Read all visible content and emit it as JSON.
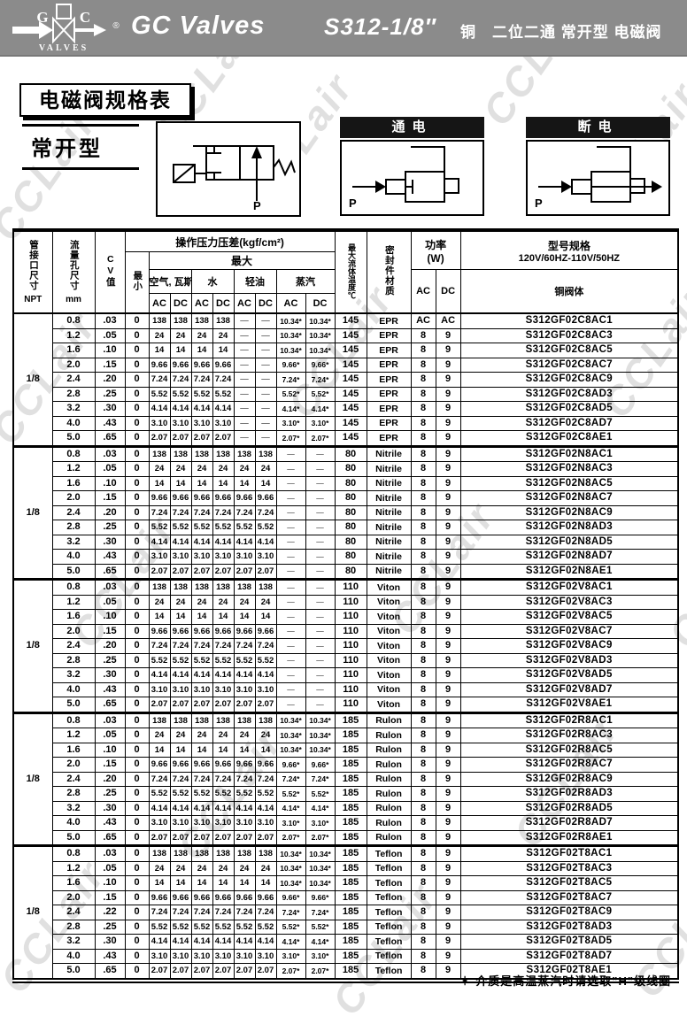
{
  "header": {
    "brand": "GC Valves",
    "model": "S312-1/8″",
    "subtitle": "铜　二位二通 常开型 电磁阀",
    "logo": {
      "g": "G",
      "c": "C",
      "valves": "VALVES",
      "reg": "®"
    }
  },
  "section": {
    "title": "电磁阀规格表",
    "type_label": "常开型",
    "energized_label": "通电",
    "deenergized_label": "断电",
    "port_label": "P"
  },
  "table": {
    "headers": {
      "pipe_size": "管接口尺寸",
      "pipe_size_unit": "NPT",
      "orifice": "流量孔尺寸",
      "orifice_unit": "mm",
      "cv": "CV值",
      "pressure_group": "操作压力压差(kgf/cm²)",
      "min": "最小",
      "max": "最大",
      "media": [
        "空气, 瓦斯",
        "水",
        "轻油",
        "蒸汽"
      ],
      "ac": "AC",
      "dc": "DC",
      "max_temp": "最大流体温度℃",
      "seal": "密封件材质",
      "power": "功率",
      "power_unit": "(W)",
      "model_spec": "型号规格",
      "voltage": "120V/60HZ-110V/50HZ",
      "body": "铜阀体"
    },
    "groups": [
      {
        "npt": "1/8",
        "rows": [
          [
            "0.8",
            ".03",
            "0",
            "138",
            "138",
            "138",
            "138",
            "—",
            "—",
            "10.34*",
            "10.34*",
            "145",
            "EPR",
            "AC",
            "AC",
            "S312GF02C8AC1"
          ],
          [
            "1.2",
            ".05",
            "0",
            "24",
            "24",
            "24",
            "24",
            "—",
            "—",
            "10.34*",
            "10.34*",
            "145",
            "EPR",
            "8",
            "9",
            "S312GF02C8AC3"
          ],
          [
            "1.6",
            ".10",
            "0",
            "14",
            "14",
            "14",
            "14",
            "—",
            "—",
            "10.34*",
            "10.34*",
            "145",
            "EPR",
            "8",
            "9",
            "S312GF02C8AC5"
          ],
          [
            "2.0",
            ".15",
            "0",
            "9.66",
            "9.66",
            "9.66",
            "9.66",
            "—",
            "—",
            "9.66*",
            "9.66*",
            "145",
            "EPR",
            "8",
            "9",
            "S312GF02C8AC7"
          ],
          [
            "2.4",
            ".20",
            "0",
            "7.24",
            "7.24",
            "7.24",
            "7.24",
            "—",
            "—",
            "7.24*",
            "7.24*",
            "145",
            "EPR",
            "8",
            "9",
            "S312GF02C8AC9"
          ],
          [
            "2.8",
            ".25",
            "0",
            "5.52",
            "5.52",
            "5.52",
            "5.52",
            "—",
            "—",
            "5.52*",
            "5.52*",
            "145",
            "EPR",
            "8",
            "9",
            "S312GF02C8AD3"
          ],
          [
            "3.2",
            ".30",
            "0",
            "4.14",
            "4.14",
            "4.14",
            "4.14",
            "—",
            "—",
            "4.14*",
            "4.14*",
            "145",
            "EPR",
            "8",
            "9",
            "S312GF02C8AD5"
          ],
          [
            "4.0",
            ".43",
            "0",
            "3.10",
            "3.10",
            "3.10",
            "3.10",
            "—",
            "—",
            "3.10*",
            "3.10*",
            "145",
            "EPR",
            "8",
            "9",
            "S312GF02C8AD7"
          ],
          [
            "5.0",
            ".65",
            "0",
            "2.07",
            "2.07",
            "2.07",
            "2.07",
            "—",
            "—",
            "2.07*",
            "2.07*",
            "145",
            "EPR",
            "8",
            "9",
            "S312GF02C8AE1"
          ]
        ]
      },
      {
        "npt": "1/8",
        "rows": [
          [
            "0.8",
            ".03",
            "0",
            "138",
            "138",
            "138",
            "138",
            "138",
            "138",
            "—",
            "—",
            "80",
            "Nitrile",
            "8",
            "9",
            "S312GF02N8AC1"
          ],
          [
            "1.2",
            ".05",
            "0",
            "24",
            "24",
            "24",
            "24",
            "24",
            "24",
            "—",
            "—",
            "80",
            "Nitrile",
            "8",
            "9",
            "S312GF02N8AC3"
          ],
          [
            "1.6",
            ".10",
            "0",
            "14",
            "14",
            "14",
            "14",
            "14",
            "14",
            "—",
            "—",
            "80",
            "Nitrile",
            "8",
            "9",
            "S312GF02N8AC5"
          ],
          [
            "2.0",
            ".15",
            "0",
            "9.66",
            "9.66",
            "9.66",
            "9.66",
            "9.66",
            "9.66",
            "—",
            "—",
            "80",
            "Nitrile",
            "8",
            "9",
            "S312GF02N8AC7"
          ],
          [
            "2.4",
            ".20",
            "0",
            "7.24",
            "7.24",
            "7.24",
            "7.24",
            "7.24",
            "7.24",
            "—",
            "—",
            "80",
            "Nitrile",
            "8",
            "9",
            "S312GF02N8AC9"
          ],
          [
            "2.8",
            ".25",
            "0",
            "5.52",
            "5.52",
            "5.52",
            "5.52",
            "5.52",
            "5.52",
            "—",
            "—",
            "80",
            "Nitrile",
            "8",
            "9",
            "S312GF02N8AD3"
          ],
          [
            "3.2",
            ".30",
            "0",
            "4.14",
            "4.14",
            "4.14",
            "4.14",
            "4.14",
            "4.14",
            "—",
            "—",
            "80",
            "Nitrile",
            "8",
            "9",
            "S312GF02N8AD5"
          ],
          [
            "4.0",
            ".43",
            "0",
            "3.10",
            "3.10",
            "3.10",
            "3.10",
            "3.10",
            "3.10",
            "—",
            "—",
            "80",
            "Nitrile",
            "8",
            "9",
            "S312GF02N8AD7"
          ],
          [
            "5.0",
            ".65",
            "0",
            "2.07",
            "2.07",
            "2.07",
            "2.07",
            "2.07",
            "2.07",
            "—",
            "—",
            "80",
            "Nitrile",
            "8",
            "9",
            "S312GF02N8AE1"
          ]
        ]
      },
      {
        "npt": "1/8",
        "rows": [
          [
            "0.8",
            ".03",
            "0",
            "138",
            "138",
            "138",
            "138",
            "138",
            "138",
            "—",
            "—",
            "110",
            "Viton",
            "8",
            "9",
            "S312GF02V8AC1"
          ],
          [
            "1.2",
            ".05",
            "0",
            "24",
            "24",
            "24",
            "24",
            "24",
            "24",
            "—",
            "—",
            "110",
            "Viton",
            "8",
            "9",
            "S312GF02V8AC3"
          ],
          [
            "1.6",
            ".10",
            "0",
            "14",
            "14",
            "14",
            "14",
            "14",
            "14",
            "—",
            "—",
            "110",
            "Viton",
            "8",
            "9",
            "S312GF02V8AC5"
          ],
          [
            "2.0",
            ".15",
            "0",
            "9.66",
            "9.66",
            "9.66",
            "9.66",
            "9.66",
            "9.66",
            "—",
            "—",
            "110",
            "Viton",
            "8",
            "9",
            "S312GF02V8AC7"
          ],
          [
            "2.4",
            ".20",
            "0",
            "7.24",
            "7.24",
            "7.24",
            "7.24",
            "7.24",
            "7.24",
            "—",
            "—",
            "110",
            "Viton",
            "8",
            "9",
            "S312GF02V8AC9"
          ],
          [
            "2.8",
            ".25",
            "0",
            "5.52",
            "5.52",
            "5.52",
            "5.52",
            "5.52",
            "5.52",
            "—",
            "—",
            "110",
            "Viton",
            "8",
            "9",
            "S312GF02V8AD3"
          ],
          [
            "3.2",
            ".30",
            "0",
            "4.14",
            "4.14",
            "4.14",
            "4.14",
            "4.14",
            "4.14",
            "—",
            "—",
            "110",
            "Viton",
            "8",
            "9",
            "S312GF02V8AD5"
          ],
          [
            "4.0",
            ".43",
            "0",
            "3.10",
            "3.10",
            "3.10",
            "3.10",
            "3.10",
            "3.10",
            "—",
            "—",
            "110",
            "Viton",
            "8",
            "9",
            "S312GF02V8AD7"
          ],
          [
            "5.0",
            ".65",
            "0",
            "2.07",
            "2.07",
            "2.07",
            "2.07",
            "2.07",
            "2.07",
            "—",
            "—",
            "110",
            "Viton",
            "8",
            "9",
            "S312GF02V8AE1"
          ]
        ]
      },
      {
        "npt": "1/8",
        "rows": [
          [
            "0.8",
            ".03",
            "0",
            "138",
            "138",
            "138",
            "138",
            "138",
            "138",
            "10.34*",
            "10.34*",
            "185",
            "Rulon",
            "8",
            "9",
            "S312GF02R8AC1"
          ],
          [
            "1.2",
            ".05",
            "0",
            "24",
            "24",
            "24",
            "24",
            "24",
            "24",
            "10.34*",
            "10.34*",
            "185",
            "Rulon",
            "8",
            "9",
            "S312GF02R8AC3"
          ],
          [
            "1.6",
            ".10",
            "0",
            "14",
            "14",
            "14",
            "14",
            "14",
            "14",
            "10.34*",
            "10.34*",
            "185",
            "Rulon",
            "8",
            "9",
            "S312GF02R8AC5"
          ],
          [
            "2.0",
            ".15",
            "0",
            "9.66",
            "9.66",
            "9.66",
            "9.66",
            "9.66",
            "9.66",
            "9.66*",
            "9.66*",
            "185",
            "Rulon",
            "8",
            "9",
            "S312GF02R8AC7"
          ],
          [
            "2.4",
            ".20",
            "0",
            "7.24",
            "7.24",
            "7.24",
            "7.24",
            "7.24",
            "7.24",
            "7.24*",
            "7.24*",
            "185",
            "Rulon",
            "8",
            "9",
            "S312GF02R8AC9"
          ],
          [
            "2.8",
            ".25",
            "0",
            "5.52",
            "5.52",
            "5.52",
            "5.52",
            "5.52",
            "5.52",
            "5.52*",
            "5.52*",
            "185",
            "Rulon",
            "8",
            "9",
            "S312GF02R8AD3"
          ],
          [
            "3.2",
            ".30",
            "0",
            "4.14",
            "4.14",
            "4.14",
            "4.14",
            "4.14",
            "4.14",
            "4.14*",
            "4.14*",
            "185",
            "Rulon",
            "8",
            "9",
            "S312GF02R8AD5"
          ],
          [
            "4.0",
            ".43",
            "0",
            "3.10",
            "3.10",
            "3.10",
            "3.10",
            "3.10",
            "3.10",
            "3.10*",
            "3.10*",
            "185",
            "Rulon",
            "8",
            "9",
            "S312GF02R8AD7"
          ],
          [
            "5.0",
            ".65",
            "0",
            "2.07",
            "2.07",
            "2.07",
            "2.07",
            "2.07",
            "2.07",
            "2.07*",
            "2.07*",
            "185",
            "Rulon",
            "8",
            "9",
            "S312GF02R8AE1"
          ]
        ]
      },
      {
        "npt": "1/8",
        "rows": [
          [
            "0.8",
            ".03",
            "0",
            "138",
            "138",
            "138",
            "138",
            "138",
            "138",
            "10.34*",
            "10.34*",
            "185",
            "Teflon",
            "8",
            "9",
            "S312GF02T8AC1"
          ],
          [
            "1.2",
            ".05",
            "0",
            "24",
            "24",
            "24",
            "24",
            "24",
            "24",
            "10.34*",
            "10.34*",
            "185",
            "Teflon",
            "8",
            "9",
            "S312GF02T8AC3"
          ],
          [
            "1.6",
            ".10",
            "0",
            "14",
            "14",
            "14",
            "14",
            "14",
            "14",
            "10.34*",
            "10.34*",
            "185",
            "Teflon",
            "8",
            "9",
            "S312GF02T8AC5"
          ],
          [
            "2.0",
            ".15",
            "0",
            "9.66",
            "9.66",
            "9.66",
            "9.66",
            "9.66",
            "9.66",
            "9.66*",
            "9.66*",
            "185",
            "Teflon",
            "8",
            "9",
            "S312GF02T8AC7"
          ],
          [
            "2.4",
            ".22",
            "0",
            "7.24",
            "7.24",
            "7.24",
            "7.24",
            "7.24",
            "7.24",
            "7.24*",
            "7.24*",
            "185",
            "Teflon",
            "8",
            "9",
            "S312GF02T8AC9"
          ],
          [
            "2.8",
            ".25",
            "0",
            "5.52",
            "5.52",
            "5.52",
            "5.52",
            "5.52",
            "5.52",
            "5.52*",
            "5.52*",
            "185",
            "Teflon",
            "8",
            "9",
            "S312GF02T8AD3"
          ],
          [
            "3.2",
            ".30",
            "0",
            "4.14",
            "4.14",
            "4.14",
            "4.14",
            "4.14",
            "4.14",
            "4.14*",
            "4.14*",
            "185",
            "Teflon",
            "8",
            "9",
            "S312GF02T8AD5"
          ],
          [
            "4.0",
            ".43",
            "0",
            "3.10",
            "3.10",
            "3.10",
            "3.10",
            "3.10",
            "3.10",
            "3.10*",
            "3.10*",
            "185",
            "Teflon",
            "8",
            "9",
            "S312GF02T8AD7"
          ],
          [
            "5.0",
            ".65",
            "0",
            "2.07",
            "2.07",
            "2.07",
            "2.07",
            "2.07",
            "2.07",
            "2.07*",
            "2.07*",
            "185",
            "Teflon",
            "8",
            "9",
            "S312GF02T8AE1"
          ]
        ]
      }
    ]
  },
  "footnote": "＊ 介质是高温蒸汽时请选取\"H\"级线圈",
  "watermark": "CCLair",
  "colors": {
    "banner_bg": "#8b8b8b",
    "state_title_bg": "#151515",
    "watermark": "#9b9b9b"
  }
}
